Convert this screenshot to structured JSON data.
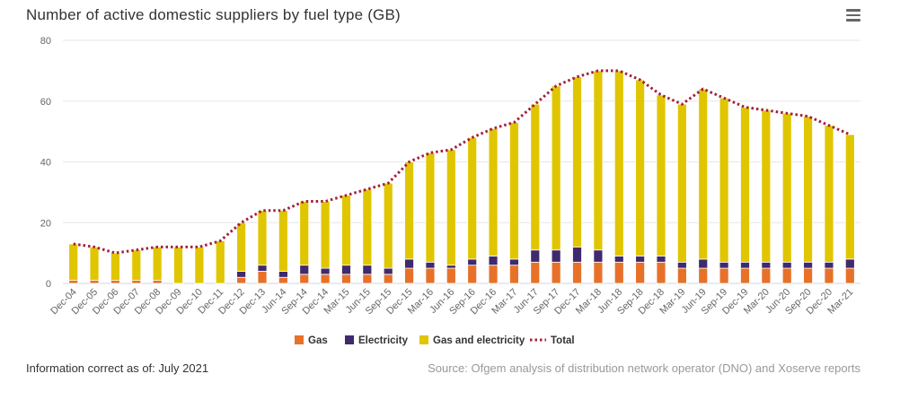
{
  "header": {
    "title": "Number of active domestic suppliers by fuel type (GB)",
    "menu_icon": "hamburger-menu-icon"
  },
  "footer": {
    "info": "Information correct as of: July 2021",
    "source": "Source: Ofgem analysis of distribution network operator (DNO) and Xoserve reports"
  },
  "chart_data": {
    "type": "bar",
    "stacked": true,
    "title": "Number of active domestic suppliers by fuel type (GB)",
    "xlabel": "",
    "ylabel": "",
    "ylim": [
      0,
      80
    ],
    "yticks": [
      0,
      20,
      40,
      60,
      80
    ],
    "grid": true,
    "legend_position": "bottom",
    "categories": [
      "Dec-04",
      "Dec-05",
      "Dec-06",
      "Dec-07",
      "Dec-08",
      "Dec-09",
      "Dec-10",
      "Dec-11",
      "Dec-12",
      "Dec-13",
      "Jun-14",
      "Sep-14",
      "Dec-14",
      "Mar-15",
      "Jun-15",
      "Sep-15",
      "Dec-15",
      "Mar-16",
      "Jun-16",
      "Sep-16",
      "Dec-16",
      "Mar-17",
      "Jun-17",
      "Sep-17",
      "Dec-17",
      "Mar-18",
      "Jun-18",
      "Sep-18",
      "Dec-18",
      "Mar-19",
      "Jun-19",
      "Sep-19",
      "Dec-19",
      "Mar-20",
      "Jun-20",
      "Sep-20",
      "Dec-20",
      "Mar-21"
    ],
    "series": [
      {
        "name": "Gas",
        "type": "bar",
        "color": "#e8712a",
        "values": [
          1,
          1,
          1,
          1,
          1,
          0,
          0,
          0,
          2,
          4,
          2,
          3,
          3,
          3,
          3,
          3,
          5,
          5,
          5,
          6,
          6,
          6,
          7,
          7,
          7,
          7,
          7,
          7,
          7,
          5,
          5,
          5,
          5,
          5,
          5,
          5,
          5,
          5
        ]
      },
      {
        "name": "Electricity",
        "type": "bar",
        "color": "#3f2a6e",
        "values": [
          0,
          0,
          0,
          0,
          0,
          0,
          0,
          0,
          2,
          2,
          2,
          3,
          2,
          3,
          3,
          2,
          3,
          2,
          1,
          2,
          3,
          2,
          4,
          4,
          5,
          4,
          2,
          2,
          2,
          2,
          3,
          2,
          2,
          2,
          2,
          2,
          2,
          3
        ]
      },
      {
        "name": "Gas and electricity",
        "type": "bar",
        "color": "#e0c600",
        "values": [
          12,
          11,
          9,
          10,
          11,
          12,
          12,
          14,
          16,
          18,
          20,
          21,
          22,
          23,
          25,
          28,
          32,
          36,
          38,
          40,
          42,
          45,
          48,
          54,
          56,
          59,
          61,
          58,
          53,
          52,
          56,
          54,
          51,
          50,
          49,
          48,
          45,
          41
        ]
      },
      {
        "name": "Total",
        "type": "line",
        "style": "dotted",
        "color": "#a3203a",
        "values": [
          13,
          12,
          10,
          11,
          12,
          12,
          12,
          14,
          20,
          24,
          24,
          27,
          27,
          29,
          31,
          33,
          40,
          43,
          44,
          48,
          51,
          53,
          59,
          65,
          68,
          70,
          70,
          67,
          62,
          59,
          64,
          61,
          58,
          57,
          56,
          55,
          52,
          49
        ]
      }
    ]
  }
}
